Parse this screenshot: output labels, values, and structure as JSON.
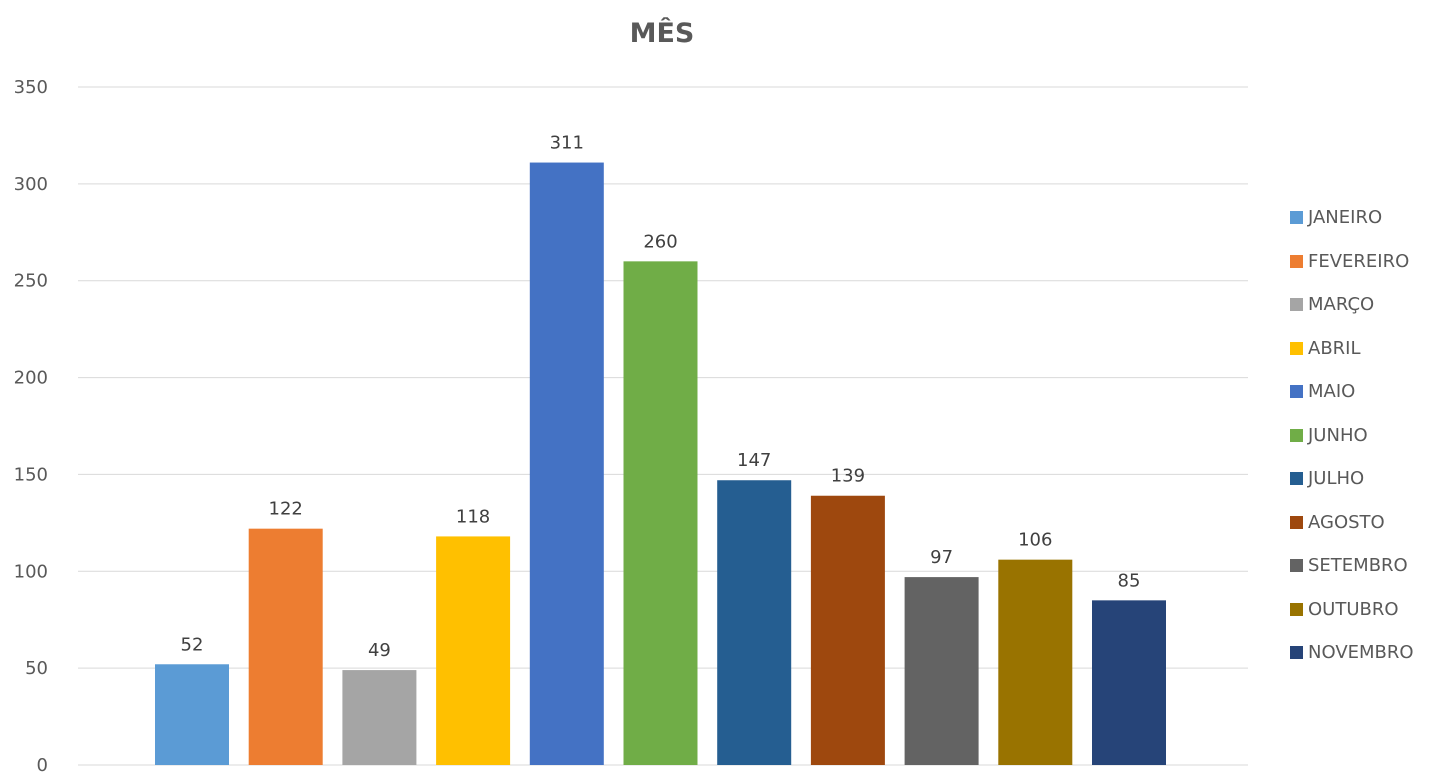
{
  "chart_data": {
    "type": "bar",
    "title": "MÊS",
    "xlabel": "",
    "ylabel": "",
    "ylim": [
      0,
      350
    ],
    "yticks": [
      0,
      50,
      100,
      150,
      200,
      250,
      300,
      350
    ],
    "grid": true,
    "legend_position": "right",
    "categories": [
      "JANEIRO",
      "FEVEREIRO",
      "MARÇO",
      "ABRIL",
      "MAIO",
      "JUNHO",
      "JULHO",
      "AGOSTO",
      "SETEMBRO",
      "OUTUBRO",
      "NOVEMBRO"
    ],
    "values": [
      52,
      122,
      49,
      118,
      311,
      260,
      147,
      139,
      97,
      106,
      85
    ],
    "data_labels": [
      "52",
      "122",
      "49",
      "118",
      "311",
      "260",
      "147",
      "139",
      "97",
      "106",
      "85"
    ],
    "colors": [
      "#5B9BD5",
      "#ED7D31",
      "#A5A5A5",
      "#FFC000",
      "#4472C4",
      "#70AD47",
      "#255E91",
      "#9E480E",
      "#636363",
      "#997300",
      "#264478"
    ]
  }
}
